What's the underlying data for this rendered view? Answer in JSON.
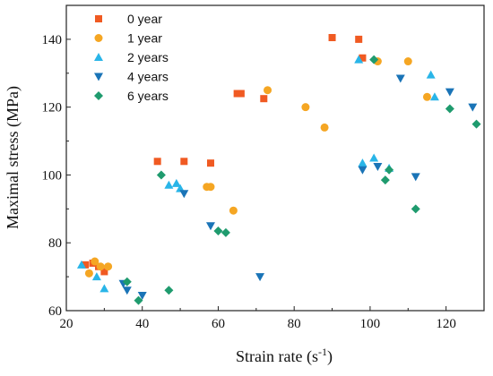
{
  "chart_data": {
    "type": "scatter",
    "xlabel": "Strain rate (s",
    "xlabel_sup": "-1",
    "xlabel_end": ")",
    "ylabel": "Maximal stress (MPa)",
    "xlim": [
      20,
      130
    ],
    "ylim": [
      60,
      150
    ],
    "xticks": [
      20,
      40,
      60,
      80,
      100,
      120
    ],
    "yticks": [
      60,
      80,
      100,
      120,
      140
    ],
    "legend_position": "top-left",
    "grid": false,
    "series": [
      {
        "name": "0 year",
        "marker": "square",
        "color": "#f05a22",
        "points": [
          [
            25,
            73.5
          ],
          [
            27,
            74
          ],
          [
            28.5,
            73
          ],
          [
            30,
            71.5
          ],
          [
            44,
            104
          ],
          [
            51,
            104
          ],
          [
            58,
            103.5
          ],
          [
            65,
            124
          ],
          [
            66,
            124
          ],
          [
            72,
            122.5
          ],
          [
            90,
            140.5
          ],
          [
            97,
            140
          ],
          [
            98,
            134.5
          ]
        ]
      },
      {
        "name": "1 year",
        "marker": "circle",
        "color": "#f5a623",
        "points": [
          [
            26,
            71
          ],
          [
            27.5,
            74.5
          ],
          [
            29,
            73
          ],
          [
            31,
            73
          ],
          [
            57,
            96.5
          ],
          [
            58,
            96.5
          ],
          [
            64,
            89.5
          ],
          [
            73,
            125
          ],
          [
            83,
            120
          ],
          [
            88,
            114
          ],
          [
            102,
            133.5
          ],
          [
            110,
            133.5
          ],
          [
            115,
            123
          ]
        ]
      },
      {
        "name": "2 years",
        "marker": "triangle-up",
        "color": "#29b5e8",
        "points": [
          [
            24,
            73.5
          ],
          [
            28,
            70
          ],
          [
            30,
            66.5
          ],
          [
            47,
            97
          ],
          [
            49,
            97.5
          ],
          [
            50,
            96
          ],
          [
            97,
            134
          ],
          [
            98,
            103.5
          ],
          [
            101,
            105
          ],
          [
            105,
            102
          ],
          [
            116,
            129.5
          ],
          [
            117,
            123
          ]
        ]
      },
      {
        "name": "4 years",
        "marker": "triangle-down",
        "color": "#1a74b7",
        "points": [
          [
            35,
            68
          ],
          [
            36,
            66
          ],
          [
            40,
            64.5
          ],
          [
            51,
            94.5
          ],
          [
            58,
            85
          ],
          [
            71,
            70
          ],
          [
            98,
            101.5
          ],
          [
            102,
            102.5
          ],
          [
            108,
            128.5
          ],
          [
            112,
            99.5
          ],
          [
            121,
            124.5
          ],
          [
            127,
            120
          ]
        ]
      },
      {
        "name": "6 years",
        "marker": "diamond",
        "color": "#1f9b6e",
        "points": [
          [
            36,
            68.5
          ],
          [
            39,
            63
          ],
          [
            47,
            66
          ],
          [
            45,
            100
          ],
          [
            60,
            83.5
          ],
          [
            62,
            83
          ],
          [
            101,
            134
          ],
          [
            104,
            98.5
          ],
          [
            105,
            101.5
          ],
          [
            112,
            90
          ],
          [
            121,
            119.5
          ],
          [
            128,
            115
          ]
        ]
      }
    ]
  }
}
